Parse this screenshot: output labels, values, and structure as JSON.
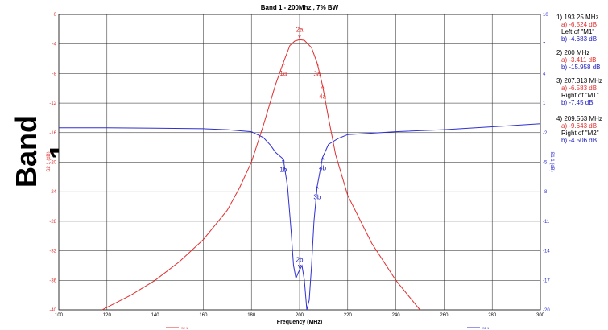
{
  "side_label": "Band 1",
  "chart_data": {
    "type": "line",
    "title": "Band 1 - 200Mhz , 7% BW",
    "xlabel": "Frequency (MHz)",
    "ylabel_left": "S2 1 (dB)",
    "ylabel_right": "S1 1 (dB)",
    "xlim": [
      100,
      300
    ],
    "ylim_left": [
      -40,
      0
    ],
    "ylim_right": [
      -20,
      10
    ],
    "grid": true,
    "x_ticks": [
      "100",
      "120",
      "140",
      "160",
      "180",
      "200",
      "220",
      "240",
      "260",
      "280",
      "300"
    ],
    "y_left_ticks": [
      "0",
      "-4",
      "-8",
      "-12",
      "-16",
      "-20",
      "-24",
      "-28",
      "-32",
      "-36",
      "-40"
    ],
    "y_right_ticks": [
      "10",
      "7",
      "4",
      "1",
      "-2",
      "-5",
      "-8",
      "-11",
      "-14",
      "-17",
      "-20"
    ],
    "legend": [
      "S2 1",
      "S1 1"
    ],
    "series": [
      {
        "name": "S2 1",
        "axis": "left",
        "color": "#e03030",
        "points": [
          [
            118,
            -40
          ],
          [
            130,
            -38
          ],
          [
            140,
            -36
          ],
          [
            150,
            -33.5
          ],
          [
            160,
            -30.5
          ],
          [
            170,
            -26.5
          ],
          [
            175,
            -23.5
          ],
          [
            180,
            -20
          ],
          [
            185,
            -15
          ],
          [
            190,
            -9.5
          ],
          [
            193.25,
            -6.524
          ],
          [
            196,
            -4.2
          ],
          [
            198,
            -3.6
          ],
          [
            200,
            -3.411
          ],
          [
            202,
            -3.5
          ],
          [
            205,
            -4.5
          ],
          [
            207.313,
            -6.583
          ],
          [
            209.563,
            -9.643
          ],
          [
            212,
            -14
          ],
          [
            215,
            -19
          ],
          [
            220,
            -24.5
          ],
          [
            230,
            -31
          ],
          [
            240,
            -36
          ],
          [
            250,
            -40
          ]
        ]
      },
      {
        "name": "S1 1",
        "axis": "right",
        "color": "#3030d0",
        "points": [
          [
            100,
            -1.5
          ],
          [
            120,
            -1.5
          ],
          [
            140,
            -1.55
          ],
          [
            160,
            -1.6
          ],
          [
            170,
            -1.7
          ],
          [
            180,
            -1.9
          ],
          [
            185,
            -2.5
          ],
          [
            188,
            -3.3
          ],
          [
            190,
            -4
          ],
          [
            193.25,
            -4.683
          ],
          [
            195,
            -7.5
          ],
          [
            196.5,
            -12
          ],
          [
            197.5,
            -15.5
          ],
          [
            198.5,
            -16.8
          ],
          [
            199.5,
            -16.2
          ],
          [
            200,
            -15.958
          ],
          [
            201,
            -15.5
          ],
          [
            202,
            -17
          ],
          [
            203,
            -20
          ],
          [
            204,
            -19
          ],
          [
            205,
            -15.5
          ],
          [
            206,
            -11
          ],
          [
            207.313,
            -7.45
          ],
          [
            209.563,
            -4.506
          ],
          [
            212,
            -3.2
          ],
          [
            216,
            -2.6
          ],
          [
            220,
            -2.2
          ],
          [
            240,
            -1.9
          ],
          [
            260,
            -1.7
          ],
          [
            280,
            -1.4
          ],
          [
            300,
            -1.1
          ]
        ]
      }
    ],
    "markers": [
      {
        "label": "1a",
        "x": 193.25,
        "y": -6.524,
        "axis": "left",
        "pos": "below"
      },
      {
        "label": "2a",
        "x": 200,
        "y": -3.411,
        "axis": "left",
        "pos": "above"
      },
      {
        "label": "3a",
        "x": 207.313,
        "y": -6.583,
        "axis": "left",
        "pos": "below"
      },
      {
        "label": "4a",
        "x": 209.563,
        "y": -9.643,
        "axis": "left",
        "pos": "below"
      },
      {
        "label": "1b",
        "x": 193.25,
        "y": -4.683,
        "axis": "right",
        "pos": "below"
      },
      {
        "label": "2b",
        "x": 200,
        "y": -15.958,
        "axis": "right",
        "pos": "above"
      },
      {
        "label": "3b",
        "x": 207.313,
        "y": -7.45,
        "axis": "right",
        "pos": "below"
      },
      {
        "label": "4b",
        "x": 209.563,
        "y": -4.506,
        "axis": "right",
        "pos": "below"
      }
    ],
    "marker_readouts": [
      {
        "head": "1) 193.25 MHz",
        "lines": [
          {
            "text": "a) -6.524 dB",
            "color": "red"
          },
          {
            "text": "Left of \"M1\"",
            "color": "black"
          },
          {
            "text": "b) -4.683 dB",
            "color": "blue"
          }
        ]
      },
      {
        "head": "2) 200 MHz",
        "lines": [
          {
            "text": "a) -3.411 dB",
            "color": "red"
          },
          {
            "text": "b) -15.958 dB",
            "color": "blue"
          }
        ]
      },
      {
        "head": "3) 207.313 MHz",
        "lines": [
          {
            "text": "a) -6.583 dB",
            "color": "red"
          },
          {
            "text": "Right of \"M1\"",
            "color": "black"
          },
          {
            "text": "b) -7.45 dB",
            "color": "blue"
          }
        ]
      },
      {
        "head": "4) 209.563 MHz",
        "lines": [
          {
            "text": "a) -9.643 dB",
            "color": "red"
          },
          {
            "text": "Right of \"M2\"",
            "color": "black"
          },
          {
            "text": "b) -4.506 dB",
            "color": "blue"
          }
        ]
      }
    ]
  }
}
